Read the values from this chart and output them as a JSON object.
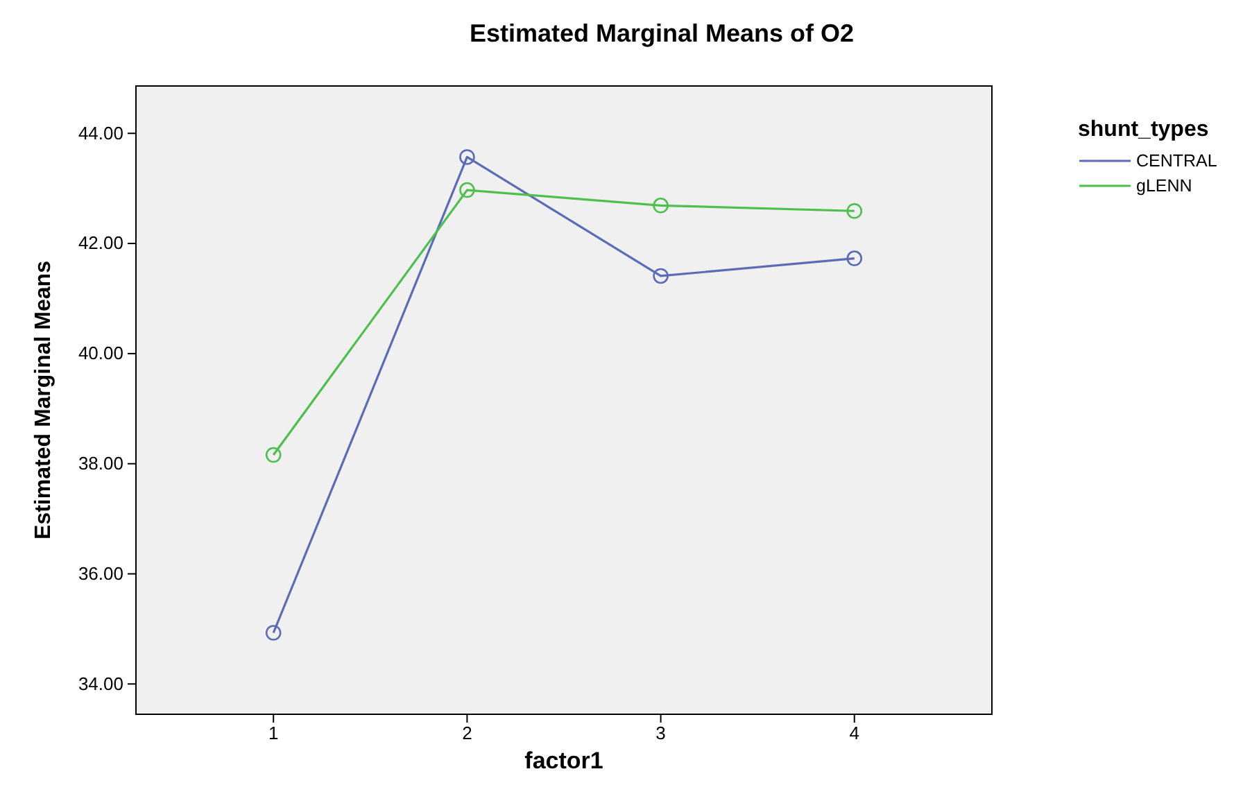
{
  "chart_data": {
    "type": "line",
    "title": "Estimated Marginal Means of O2",
    "xlabel": "factor1",
    "ylabel": "Estimated Marginal Means",
    "legend_title": "shunt_types",
    "categories": [
      "1",
      "2",
      "3",
      "4"
    ],
    "series": [
      {
        "name": "CENTRAL",
        "color": "#5b6bb5",
        "values": [
          34.93,
          43.57,
          41.41,
          41.73
        ]
      },
      {
        "name": "gLENN",
        "color": "#4cbf4c",
        "values": [
          38.16,
          42.97,
          42.69,
          42.59
        ]
      }
    ],
    "ylim": [
      33.45,
      44.86
    ],
    "yticks": [
      {
        "value": 34,
        "label": "34.00"
      },
      {
        "value": 36,
        "label": "36.00"
      },
      {
        "value": 38,
        "label": "38.00"
      },
      {
        "value": 40,
        "label": "40.00"
      },
      {
        "value": 42,
        "label": "42.00"
      },
      {
        "value": 44,
        "label": "44.00"
      }
    ],
    "grid": false,
    "legend": "top right",
    "marker": "circle",
    "line_style": "solid"
  }
}
